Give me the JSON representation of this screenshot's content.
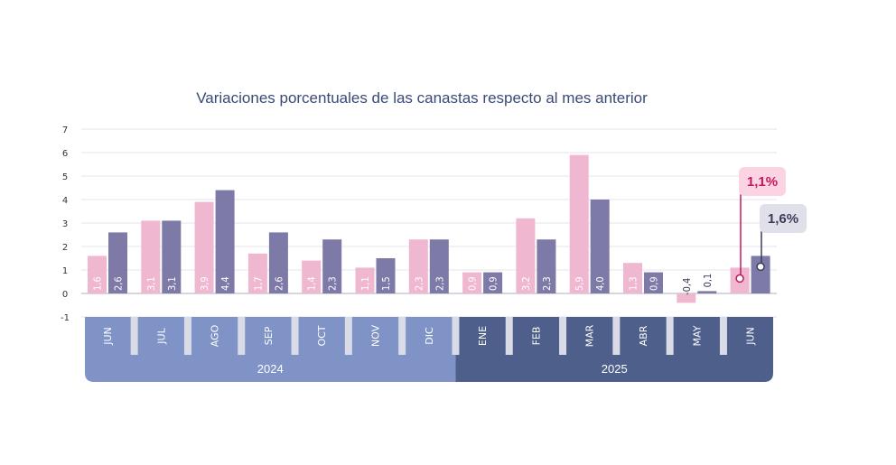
{
  "chart_data": {
    "type": "bar",
    "title": "Variaciones porcentuales de las canastas respecto al mes anterior",
    "categories": [
      "JUN",
      "JUL",
      "AGO",
      "SEP",
      "OCT",
      "NOV",
      "DIC",
      "ENE",
      "FEB",
      "MAR",
      "ABR",
      "MAY",
      "JUN"
    ],
    "years": [
      {
        "label": "2024",
        "start": 0,
        "end": 6
      },
      {
        "label": "2025",
        "start": 7,
        "end": 12
      }
    ],
    "series": [
      {
        "color": "#f0b8d0",
        "values": [
          1.6,
          3.1,
          3.9,
          1.7,
          1.4,
          1.1,
          2.3,
          0.9,
          3.2,
          5.9,
          1.3,
          -0.4,
          1.1
        ],
        "labels": [
          "1,6",
          "3,1",
          "3,9",
          "1,7",
          "1,4",
          "1,1",
          "2,3",
          "0,9",
          "3,2",
          "5,9",
          "1,3",
          "-0,4",
          ""
        ]
      },
      {
        "color": "#7e7aa8",
        "values": [
          2.6,
          3.1,
          4.4,
          2.6,
          2.3,
          1.5,
          2.3,
          0.9,
          2.3,
          4.0,
          0.9,
          0.1,
          1.6
        ],
        "labels": [
          "2,6",
          "3,1",
          "4,4",
          "2,6",
          "2,3",
          "1,5",
          "2,3",
          "0,9",
          "2,3",
          "4,0",
          "0,9",
          "0,1",
          ""
        ]
      }
    ],
    "ylim": [
      -1,
      7
    ],
    "yticks": [
      "-1",
      "0",
      "1",
      "2",
      "3",
      "4",
      "5",
      "6",
      "7"
    ],
    "grid": true,
    "callouts": [
      {
        "series": 0,
        "index": 12,
        "text": "1,1%",
        "color": "#c2185b",
        "bg": "#fbd3e3"
      },
      {
        "series": 1,
        "index": 12,
        "text": "1,6%",
        "color": "#3a3a5a",
        "bg": "#e0e0ea"
      }
    ]
  },
  "colors": {
    "band_2024": "#7f93c6",
    "band_2025": "#4e5f8c",
    "title": "#3a4a78",
    "separator": "#d9dbe6"
  }
}
